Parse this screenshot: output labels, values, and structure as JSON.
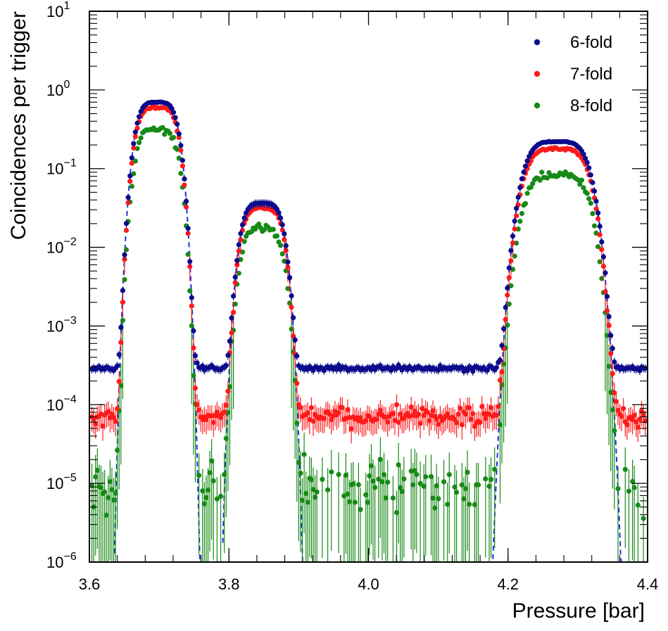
{
  "chart_data": {
    "type": "scatter",
    "xlabel": "Pressure [bar]",
    "ylabel": "Coincidences per trigger",
    "xlim": [
      3.6,
      4.4
    ],
    "ylim_log10": [
      -6,
      1
    ],
    "y_scale": "log",
    "x_ticks": [
      {
        "value": 3.6,
        "label": "3.6"
      },
      {
        "value": 3.8,
        "label": "3.8"
      },
      {
        "value": 4.0,
        "label": "4.0"
      },
      {
        "value": 4.2,
        "label": "4.2"
      },
      {
        "value": 4.4,
        "label": "4.4"
      }
    ],
    "y_ticks": [
      {
        "exp": -6,
        "label_base": "10",
        "label_exp": "−6"
      },
      {
        "exp": -5,
        "label_base": "10",
        "label_exp": "−5"
      },
      {
        "exp": -4,
        "label_base": "10",
        "label_exp": "−4"
      },
      {
        "exp": -3,
        "label_base": "10",
        "label_exp": "−3"
      },
      {
        "exp": -2,
        "label_base": "10",
        "label_exp": "−2"
      },
      {
        "exp": -1,
        "label_base": "10",
        "label_exp": "−1"
      },
      {
        "exp": 0,
        "label_base": "10",
        "label_exp": "0"
      },
      {
        "exp": 1,
        "label_base": "10",
        "label_exp": "1"
      }
    ],
    "legend_position": "top-right",
    "peaks": [
      {
        "center": 3.697,
        "width": 0.032,
        "shape": 4
      },
      {
        "center": 3.848,
        "width": 0.032,
        "shape": 4
      },
      {
        "center": 4.27,
        "width": 0.049,
        "shape": 4
      }
    ],
    "series": [
      {
        "name": "6-fold",
        "label": "6-fold",
        "color": "#0b0b8c",
        "peak_values": [
          0.7,
          0.036,
          0.22
        ],
        "background": 0.00029
      },
      {
        "name": "7-fold",
        "label": "7-fold",
        "color": "#ff1a1a",
        "peak_values": [
          0.6,
          0.031,
          0.178
        ],
        "background": 7e-05
      },
      {
        "name": "8-fold",
        "label": "8-fold",
        "color": "#168a16",
        "peak_values": [
          0.32,
          0.017,
          0.083
        ],
        "background": 9e-06
      }
    ],
    "fit_curve": {
      "color": "#1a2ee6",
      "style": "dashed",
      "peak_values": [
        0.7,
        0.036,
        0.22
      ]
    }
  }
}
